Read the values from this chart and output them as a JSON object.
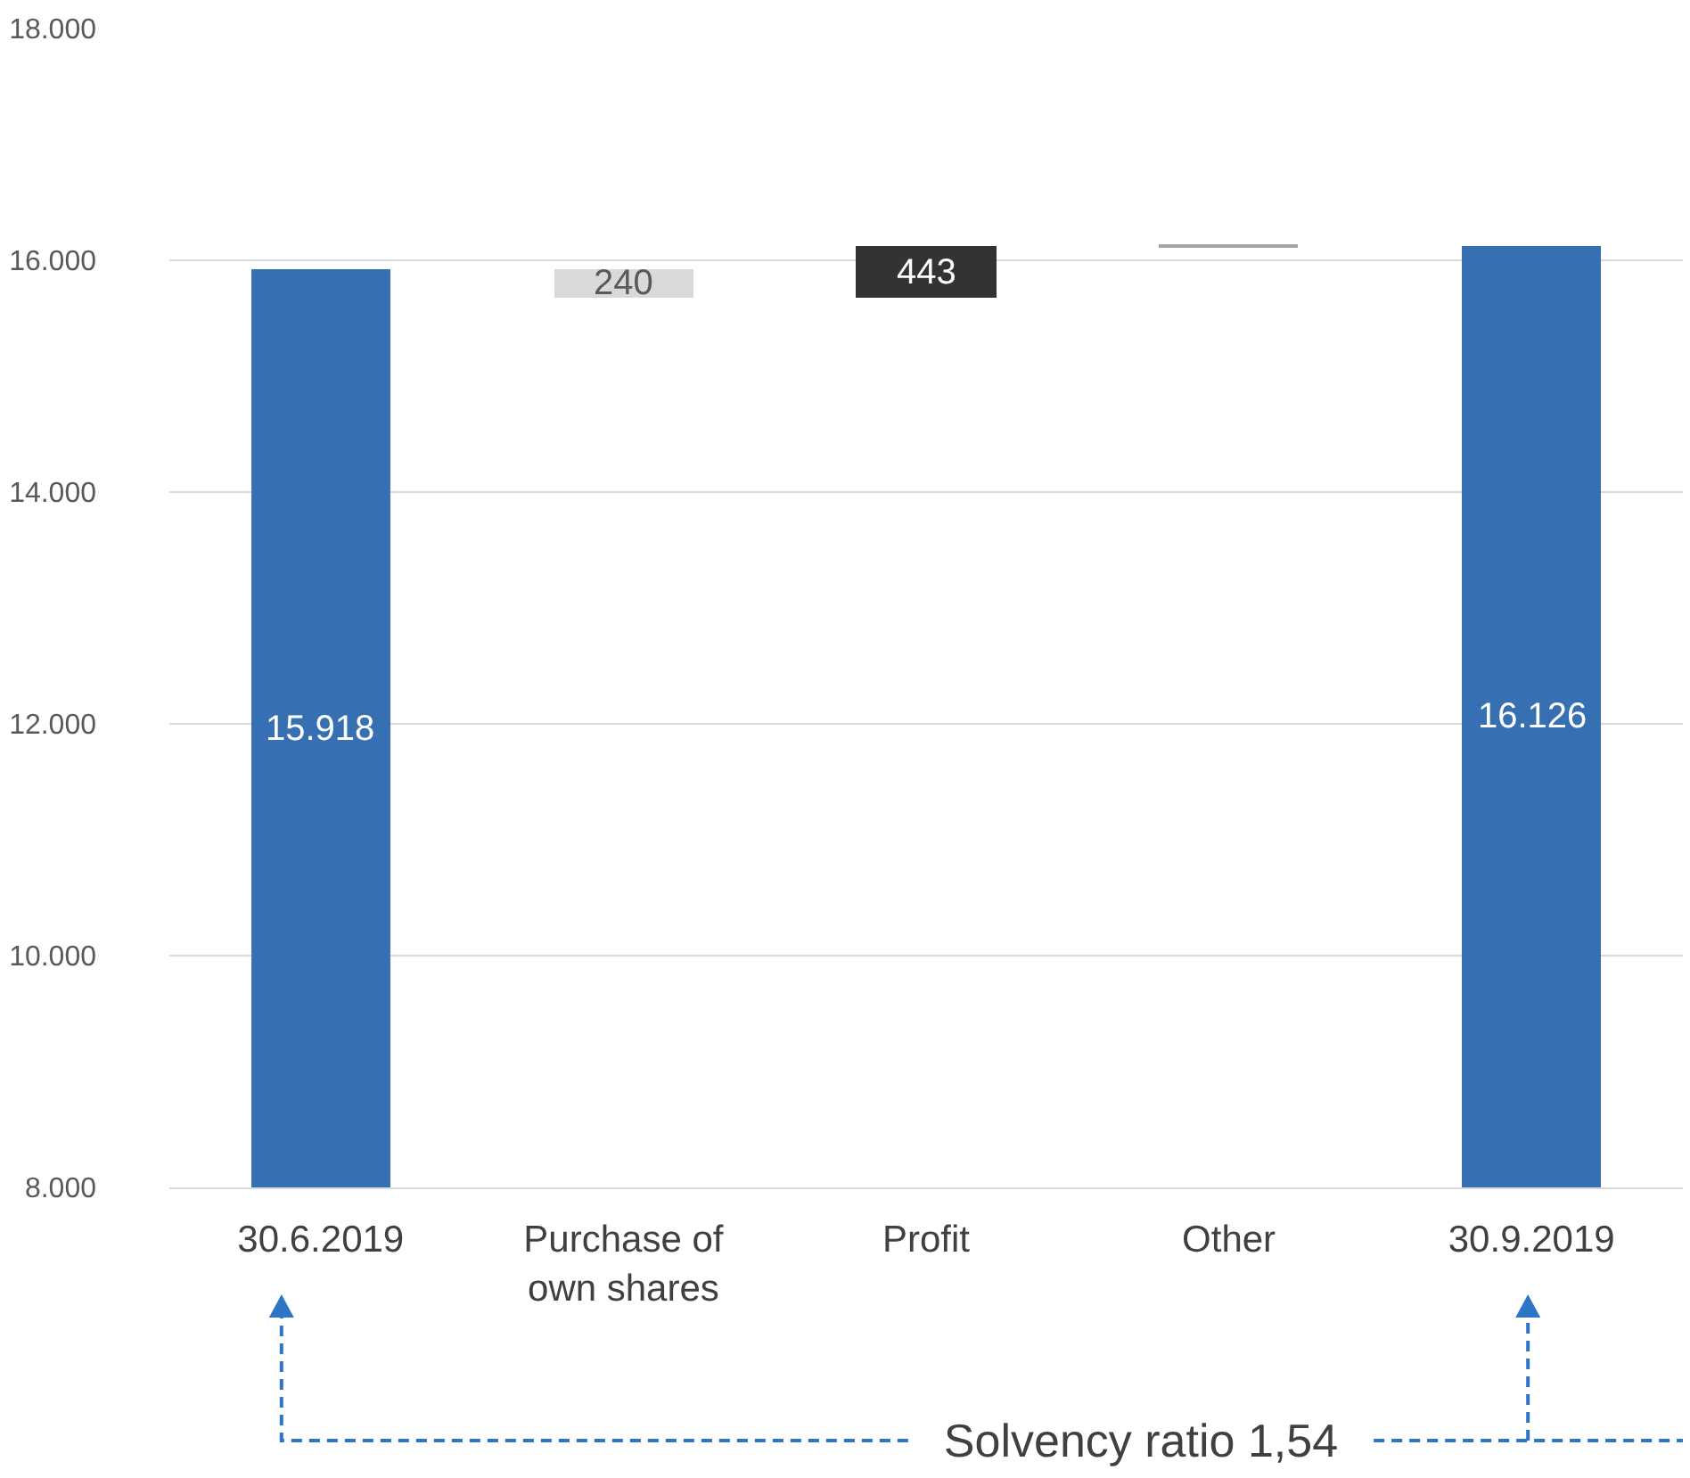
{
  "chart_data": {
    "type": "bar",
    "categories": [
      "30.6.2019",
      "Purchase of own shares",
      "Profit",
      "Other",
      "30.9.2019"
    ],
    "values": [
      15918,
      240,
      443,
      5,
      16126
    ],
    "base": [
      null,
      15678,
      15678,
      16121,
      null
    ],
    "colors": [
      "#3670b3",
      "#d9d9d9",
      "#333333",
      "#a6a6a6",
      "#3670b3"
    ],
    "value_labels": [
      "15.918",
      "240",
      "443",
      null,
      "16.126"
    ],
    "ylim": [
      8000,
      18000
    ],
    "yticks": [
      {
        "value": 8000,
        "label": "8.000"
      },
      {
        "value": 10000,
        "label": "10.000"
      },
      {
        "value": 12000,
        "label": "12.000"
      },
      {
        "value": 14000,
        "label": "14.000"
      },
      {
        "value": 16000,
        "label": "16.000"
      },
      {
        "value": 18000,
        "label": "18.000"
      }
    ],
    "grid": "y",
    "annotations": [
      "Solvency ratio 1,54"
    ]
  }
}
